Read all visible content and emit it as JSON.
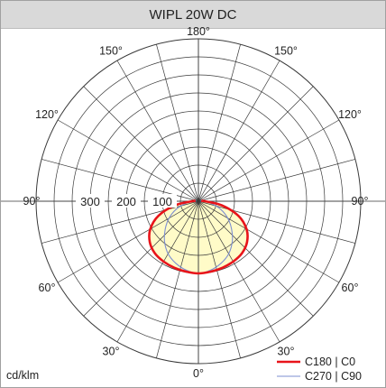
{
  "title": "WIPL 20W DC",
  "chart_data": {
    "type": "polar",
    "unit": "cd/klm",
    "r_max": 450,
    "radial_ticks": [
      100,
      200,
      300
    ],
    "radial_tick_labels": [
      "100",
      "200",
      "300"
    ],
    "angle_step_deg": 15,
    "angle_labels": [
      {
        "angle": 0,
        "text": "0°"
      },
      {
        "angle": 30,
        "text": "30°"
      },
      {
        "angle": 60,
        "text": "60°"
      },
      {
        "angle": 90,
        "text": "90°"
      },
      {
        "angle": 120,
        "text": "120°"
      },
      {
        "angle": 150,
        "text": "150°"
      },
      {
        "angle": 180,
        "text": "180°"
      },
      {
        "angle": -30,
        "text": "30°"
      },
      {
        "angle": -60,
        "text": "60°"
      },
      {
        "angle": -90,
        "text": "90°"
      },
      {
        "angle": -120,
        "text": "120°"
      },
      {
        "angle": -150,
        "text": "150°"
      }
    ],
    "series": [
      {
        "name": "C180 | C0",
        "color": "#e8141a",
        "angles": [
          0,
          10,
          20,
          30,
          40,
          50,
          60,
          70,
          80,
          90,
          95
        ],
        "values": [
          200,
          198,
          196,
          193,
          188,
          176,
          154,
          118,
          66,
          18,
          8
        ]
      },
      {
        "name": "C270 | C90",
        "color": "#7d8fd1",
        "angles": [
          0,
          10,
          20,
          30,
          40,
          50,
          60,
          70,
          80,
          90,
          95
        ],
        "values": [
          200,
          194,
          183,
          168,
          146,
          120,
          94,
          66,
          36,
          14,
          6
        ]
      }
    ],
    "fill_color": "#fffbc8"
  }
}
